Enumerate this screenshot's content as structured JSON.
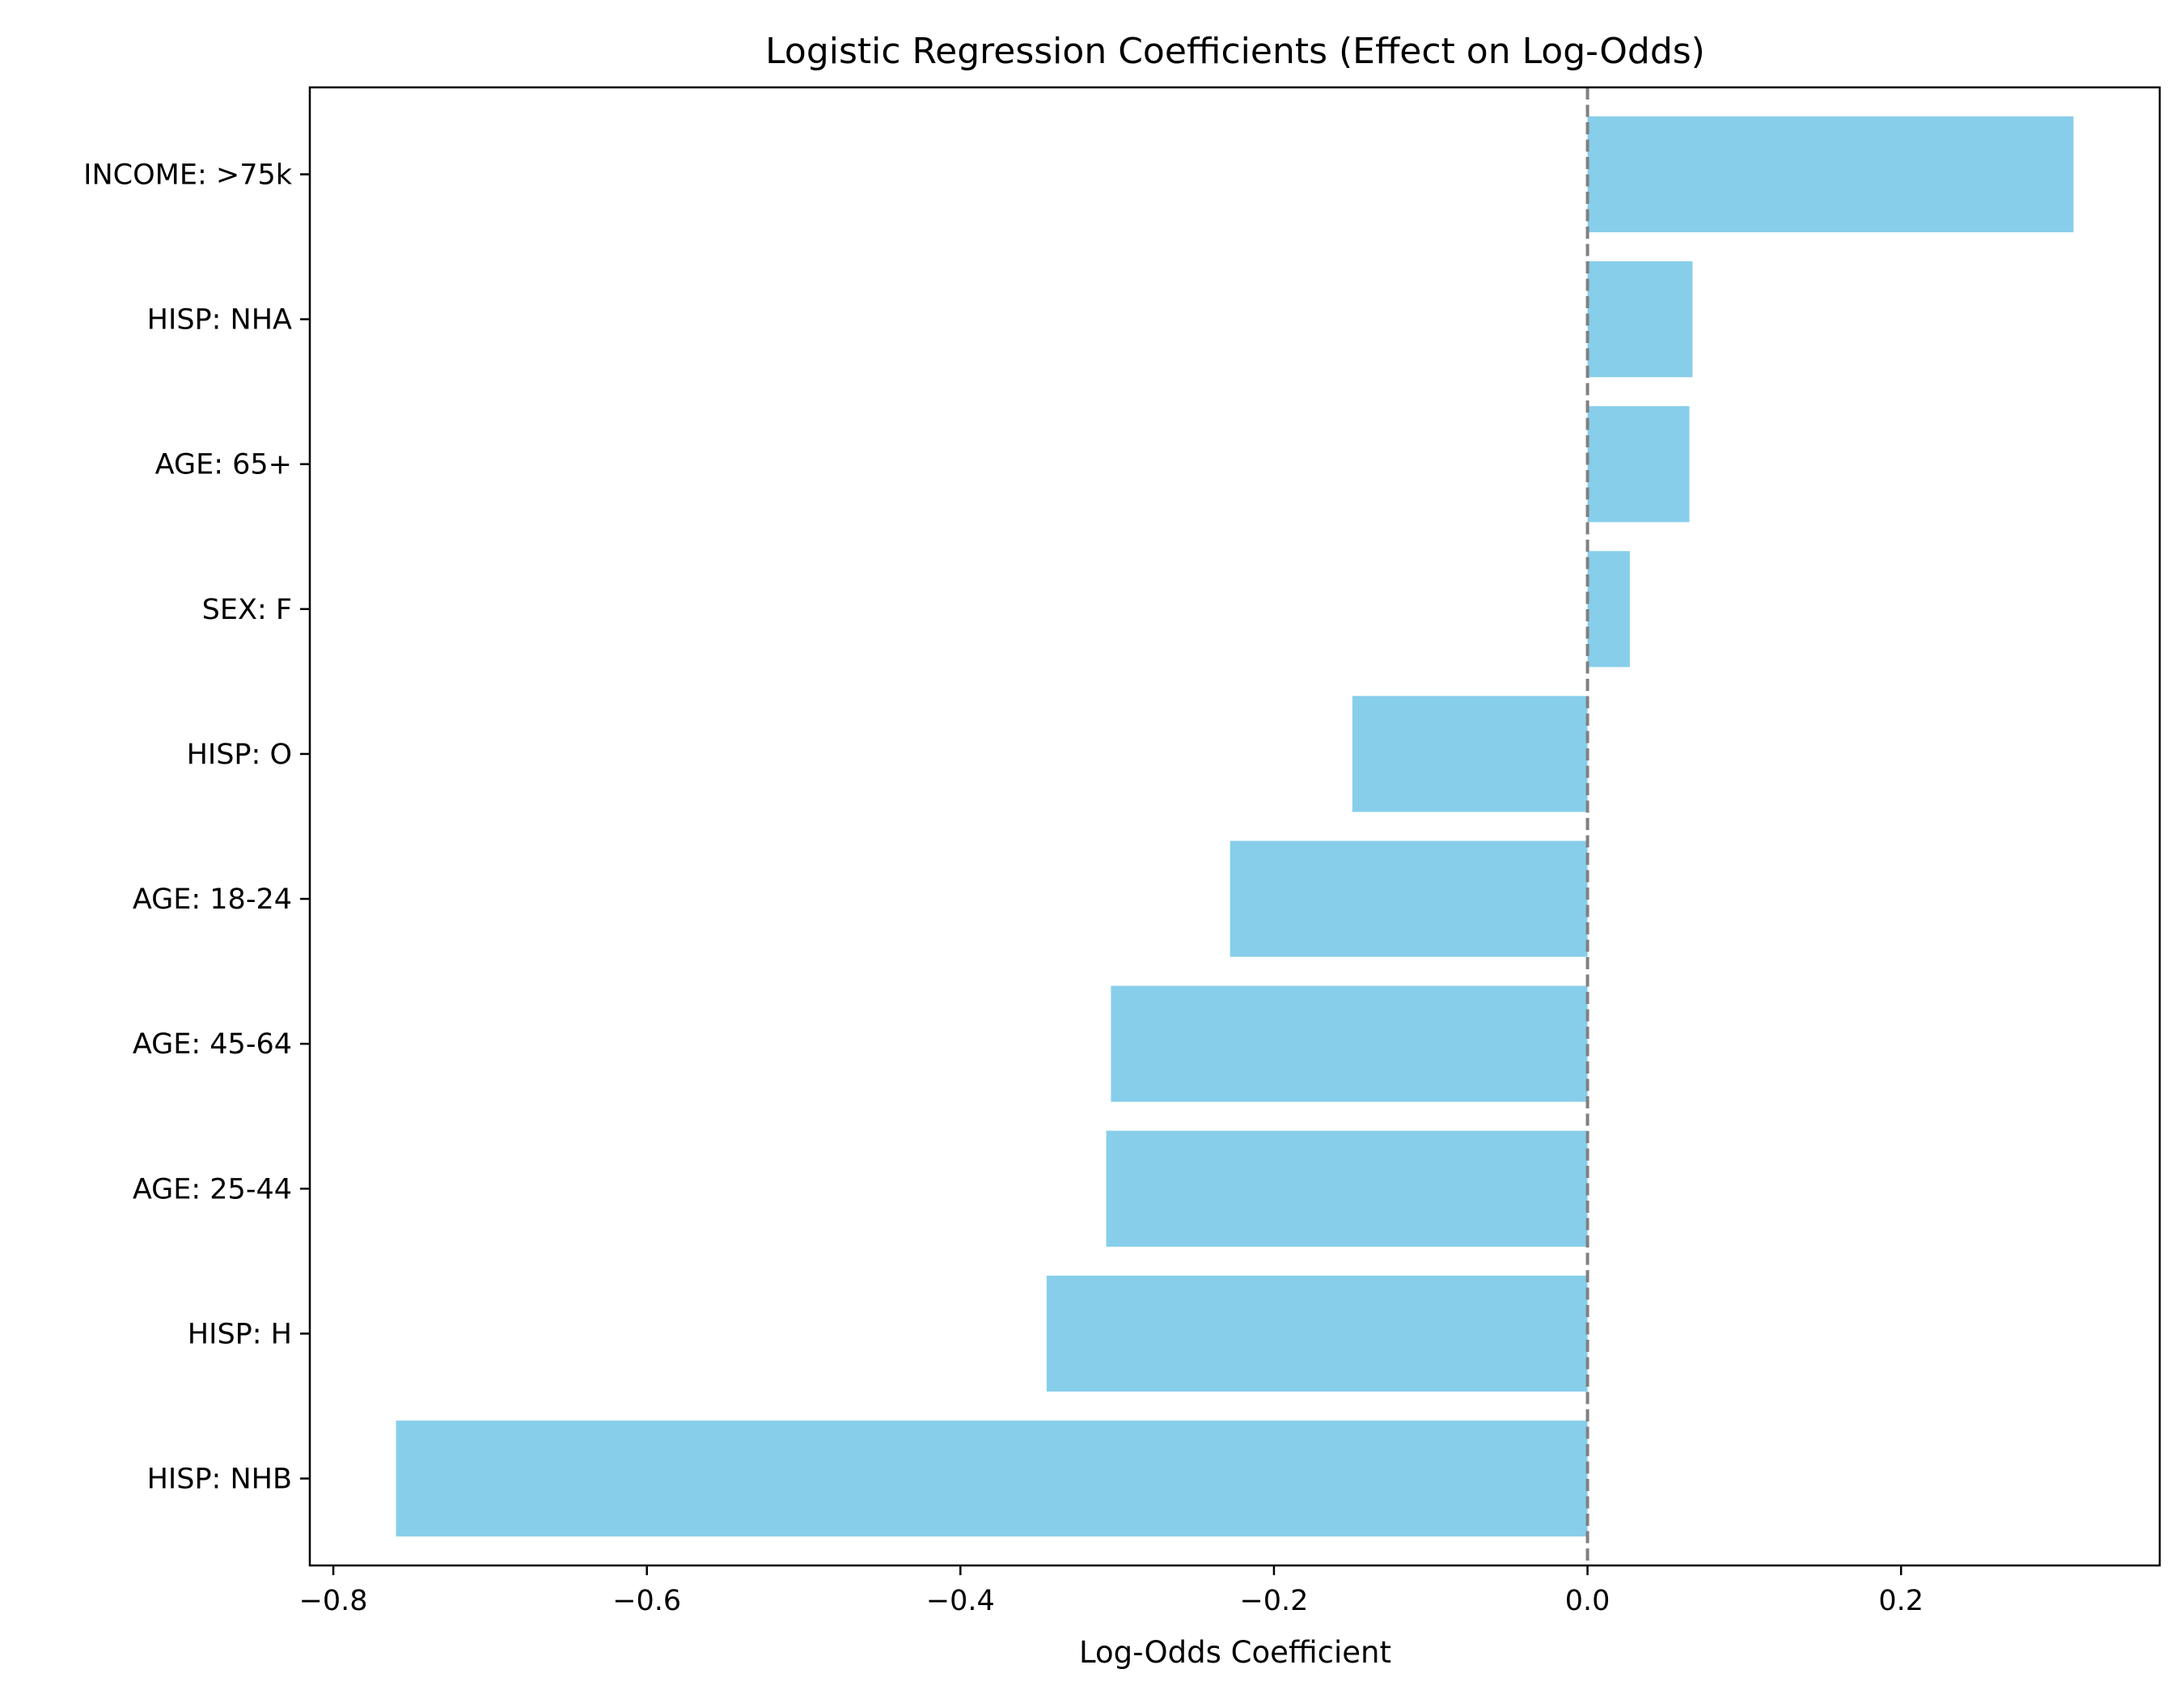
{
  "chart_data": {
    "type": "bar",
    "orientation": "horizontal",
    "title": "Logistic Regression Coefficients (Effect on Log-Odds)",
    "xlabel": "Log-Odds Coefficient",
    "ylabel": "",
    "categories": [
      "HISP: NHB",
      "HISP: H",
      "AGE: 25-44",
      "AGE: 45-64",
      "AGE: 18-24",
      "HISP: O",
      "SEX: F",
      "AGE: 65+",
      "HISP: NHA",
      "INCOME: >75k"
    ],
    "values": [
      -0.76,
      -0.345,
      -0.307,
      -0.304,
      -0.228,
      -0.15,
      0.027,
      0.065,
      0.067,
      0.31
    ],
    "xlim": [
      -0.815,
      0.365
    ],
    "xticks": [
      -0.8,
      -0.6,
      -0.4,
      -0.2,
      0.0,
      0.2
    ],
    "xtick_labels": [
      "−0.8",
      "−0.6",
      "−0.4",
      "−0.2",
      "0.0",
      "0.2"
    ],
    "bar_color": "#87ceeb",
    "reference_line": {
      "x": 0.0,
      "style": "dashed",
      "color": "#808080"
    },
    "grid": false
  }
}
